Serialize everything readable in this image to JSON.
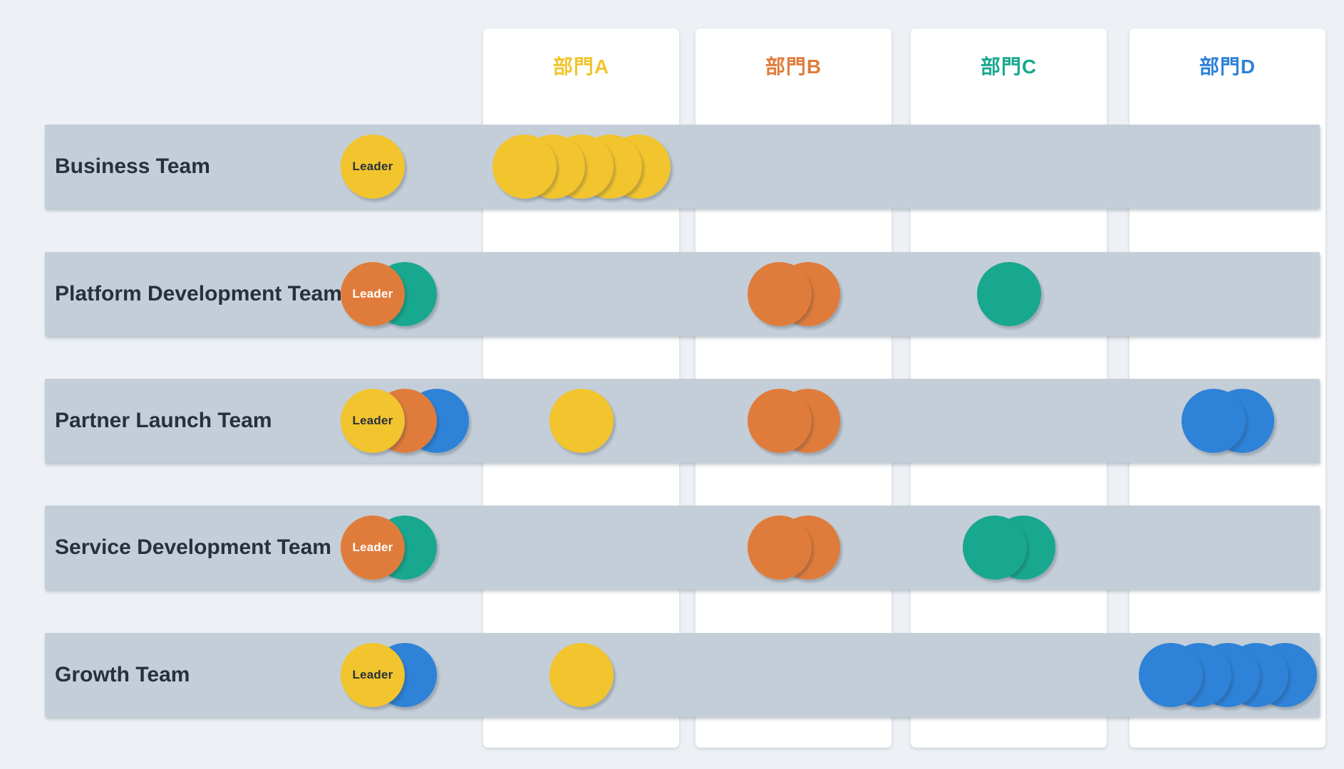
{
  "matrix": {
    "leader_label": "Leader",
    "colors": {
      "yellow": "#F2C42D",
      "orange": "#E07C3B",
      "teal": "#18A88F",
      "blue": "#2E82D8",
      "row_background": "#C4CED8",
      "page_background": "#EDF1F5",
      "dark_text": "#26313C",
      "light_text": "#FFFFFF"
    },
    "departments": [
      {
        "key": "A",
        "label": "部門A",
        "color": "yellow"
      },
      {
        "key": "B",
        "label": "部門B",
        "color": "orange"
      },
      {
        "key": "C",
        "label": "部門C",
        "color": "teal"
      },
      {
        "key": "D",
        "label": "部門D",
        "color": "blue"
      }
    ],
    "teams": [
      {
        "name": "Business Team",
        "leader_colors": [
          "yellow"
        ],
        "assignments": [
          {
            "department": "A",
            "color": "yellow",
            "count": 5
          }
        ]
      },
      {
        "name": "Platform Development Team",
        "leader_colors": [
          "orange",
          "teal"
        ],
        "assignments": [
          {
            "department": "B",
            "color": "orange",
            "count": 2
          },
          {
            "department": "C",
            "color": "teal",
            "count": 1
          }
        ]
      },
      {
        "name": "Partner Launch Team",
        "leader_colors": [
          "yellow",
          "orange",
          "blue"
        ],
        "assignments": [
          {
            "department": "A",
            "color": "yellow",
            "count": 1
          },
          {
            "department": "B",
            "color": "orange",
            "count": 2
          },
          {
            "department": "D",
            "color": "blue",
            "count": 2
          }
        ]
      },
      {
        "name": "Service Development Team",
        "leader_colors": [
          "orange",
          "teal"
        ],
        "assignments": [
          {
            "department": "B",
            "color": "orange",
            "count": 2
          },
          {
            "department": "C",
            "color": "teal",
            "count": 2
          }
        ]
      },
      {
        "name": "Growth Team",
        "leader_colors": [
          "yellow",
          "blue"
        ],
        "assignments": [
          {
            "department": "A",
            "color": "yellow",
            "count": 1
          },
          {
            "department": "D",
            "color": "blue",
            "count": 5
          }
        ]
      }
    ]
  }
}
